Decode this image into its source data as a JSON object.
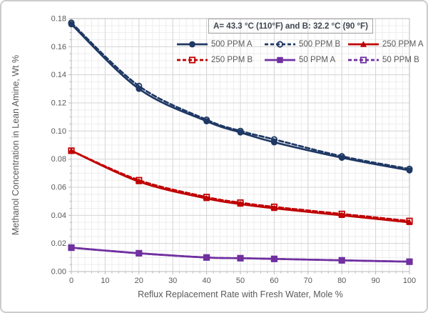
{
  "figure": {
    "background": "#FFFFFF",
    "border_color": "#CCCCCC",
    "text_color": "#595959"
  },
  "chart_data": {
    "type": "line",
    "title": "",
    "annotation": "A= 43.3 °C (110°F)  and B: 32.2 °C (90 °F)",
    "xlabel": "Reflux Replacement Rate with Fresh Water,  Mole %",
    "ylabel": "Methanol Concentration in Lean Amine, Wt %",
    "x": [
      0,
      20,
      40,
      50,
      60,
      80,
      100
    ],
    "xlim": [
      0,
      100
    ],
    "ylim": [
      0,
      0.18
    ],
    "x_major_ticks": [
      0,
      10,
      20,
      30,
      40,
      50,
      60,
      70,
      80,
      90,
      100
    ],
    "x_minor_step": 2,
    "y_major_step": 0.02,
    "y_minor_step": 0.005,
    "y_tick_labels": [
      "0.00",
      "0.02",
      "0.04",
      "0.06",
      "0.08",
      "0.10",
      "0.12",
      "0.14",
      "0.16",
      "0.18"
    ],
    "grid": true,
    "legend_position": "top-right-inside",
    "legend_order": [
      "500 PPM A",
      "500 PPM B",
      "250 PPM A",
      "250 PPM B",
      "50 PPM A",
      "50 PPM B"
    ],
    "colors": {
      "navy": "#1F3864",
      "red": "#C00000",
      "purple": "#7030A0",
      "grid_minor": "#EDEDED",
      "grid_major": "#D6D6D6",
      "plot_border": "#C4C4C4",
      "tick": "#B8B8B8",
      "label_text": "#595959"
    },
    "series": [
      {
        "name": "500 PPM A",
        "color": "#1F3864",
        "line": "solid",
        "marker": "circle-filled",
        "values": [
          0.176,
          0.13,
          0.107,
          0.099,
          0.092,
          0.081,
          0.072
        ]
      },
      {
        "name": "500 PPM B",
        "color": "#1F3864",
        "line": "dashed",
        "marker": "circle-open",
        "values": [
          0.177,
          0.132,
          0.108,
          0.1,
          0.094,
          0.082,
          0.073
        ]
      },
      {
        "name": "250 PPM A",
        "color": "#C00000",
        "line": "solid",
        "marker": "triangle-filled",
        "values": [
          0.086,
          0.064,
          0.052,
          0.048,
          0.045,
          0.04,
          0.035
        ]
      },
      {
        "name": "250 PPM B",
        "color": "#C00000",
        "line": "dashed",
        "marker": "square-open",
        "values": [
          0.086,
          0.065,
          0.053,
          0.049,
          0.046,
          0.041,
          0.036
        ]
      },
      {
        "name": "50 PPM A",
        "color": "#7030A0",
        "line": "solid",
        "marker": "square-filled",
        "values": [
          0.017,
          0.013,
          0.01,
          0.0095,
          0.009,
          0.008,
          0.007
        ]
      },
      {
        "name": "50 PPM B",
        "color": "#7030A0",
        "line": "dashed",
        "marker": "square-open",
        "values": [
          0.017,
          0.013,
          0.01,
          0.0095,
          0.009,
          0.008,
          0.007
        ]
      }
    ]
  }
}
